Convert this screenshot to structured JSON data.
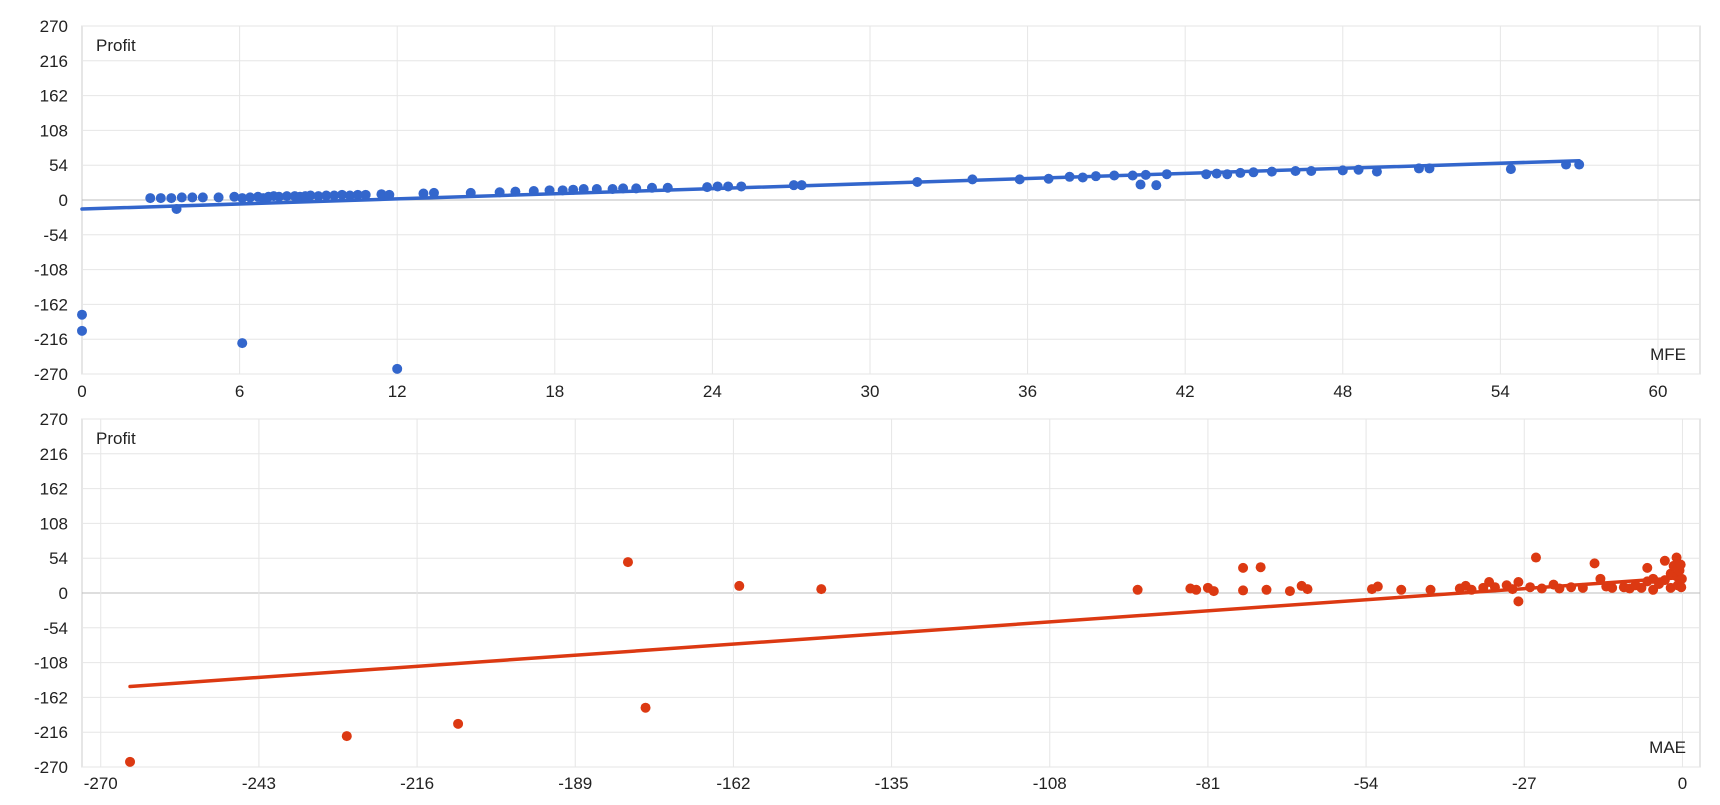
{
  "chart_data": [
    {
      "type": "scatter",
      "ylabel": "Profit",
      "xlabel": "MFE",
      "xlim": [
        0,
        60
      ],
      "ylim": [
        -270,
        270
      ],
      "x_ticks": [
        "0",
        "6",
        "12",
        "18",
        "24",
        "30",
        "36",
        "42",
        "48",
        "54",
        "60"
      ],
      "y_ticks": [
        "270",
        "216",
        "162",
        "108",
        "54",
        "0",
        "-54",
        "-108",
        "-162",
        "-216",
        "-270"
      ],
      "grid": true,
      "color": "#3366cc",
      "trendline": {
        "x": [
          0,
          57
        ],
        "y": [
          -14,
          61
        ]
      },
      "points": [
        [
          0,
          -178
        ],
        [
          0,
          -203
        ],
        [
          6.1,
          -222
        ],
        [
          12,
          -262
        ],
        [
          3.6,
          -14
        ],
        [
          2.6,
          3
        ],
        [
          3,
          3
        ],
        [
          3.4,
          3
        ],
        [
          3.8,
          4
        ],
        [
          4.2,
          4
        ],
        [
          4.6,
          4
        ],
        [
          5.2,
          4
        ],
        [
          5.8,
          5
        ],
        [
          6.1,
          3
        ],
        [
          6.4,
          4
        ],
        [
          6.7,
          5
        ],
        [
          6.9,
          3
        ],
        [
          7.1,
          5
        ],
        [
          7.3,
          6
        ],
        [
          7.5,
          5
        ],
        [
          7.8,
          6
        ],
        [
          8.1,
          6
        ],
        [
          8.3,
          5
        ],
        [
          8.5,
          6
        ],
        [
          8.7,
          7
        ],
        [
          9,
          6
        ],
        [
          9.3,
          7
        ],
        [
          9.6,
          7
        ],
        [
          9.9,
          8
        ],
        [
          10.2,
          7
        ],
        [
          10.5,
          8
        ],
        [
          10.8,
          8
        ],
        [
          11.4,
          9
        ],
        [
          11.7,
          8
        ],
        [
          13,
          10
        ],
        [
          13.4,
          11
        ],
        [
          14.8,
          11
        ],
        [
          15.9,
          12
        ],
        [
          16.5,
          13
        ],
        [
          17.2,
          14
        ],
        [
          17.8,
          15
        ],
        [
          18.3,
          15
        ],
        [
          18.7,
          16
        ],
        [
          19.1,
          17
        ],
        [
          19.6,
          17
        ],
        [
          20.2,
          17
        ],
        [
          20.6,
          18
        ],
        [
          21.1,
          18
        ],
        [
          21.7,
          19
        ],
        [
          22.3,
          19
        ],
        [
          23.8,
          20
        ],
        [
          24.2,
          21
        ],
        [
          24.6,
          21
        ],
        [
          25.1,
          21
        ],
        [
          27.1,
          23
        ],
        [
          27.4,
          23
        ],
        [
          31.8,
          28
        ],
        [
          33.9,
          32
        ],
        [
          35.7,
          32
        ],
        [
          36.8,
          33
        ],
        [
          37.6,
          36
        ],
        [
          38.1,
          35
        ],
        [
          38.6,
          37
        ],
        [
          39.3,
          38
        ],
        [
          40,
          38
        ],
        [
          40.3,
          24
        ],
        [
          40.5,
          39
        ],
        [
          40.9,
          23
        ],
        [
          41.3,
          40
        ],
        [
          42.8,
          40
        ],
        [
          43.2,
          41
        ],
        [
          43.6,
          40
        ],
        [
          44.1,
          42
        ],
        [
          44.6,
          43
        ],
        [
          45.3,
          44
        ],
        [
          46.2,
          45
        ],
        [
          46.8,
          45
        ],
        [
          48,
          46
        ],
        [
          48.6,
          47
        ],
        [
          49.3,
          44
        ],
        [
          50.9,
          49
        ],
        [
          51.3,
          49
        ],
        [
          54.4,
          48
        ],
        [
          56.5,
          55
        ],
        [
          57,
          55
        ]
      ]
    },
    {
      "type": "scatter",
      "ylabel": "Profit",
      "xlabel": "MAE",
      "xlim": [
        -272,
        0
      ],
      "ylim": [
        -270,
        270
      ],
      "x_ticks": [
        "-270",
        "-243",
        "-216",
        "-189",
        "-162",
        "-135",
        "-108",
        "-81",
        "-54",
        "-27",
        "0"
      ],
      "y_ticks": [
        "270",
        "216",
        "162",
        "108",
        "54",
        "0",
        "-54",
        "-108",
        "-162",
        "-216",
        "-270"
      ],
      "grid": true,
      "color": "#dc3912",
      "trendline": {
        "x": [
          -265,
          0
        ],
        "y": [
          -145,
          24
        ]
      },
      "points": [
        [
          -265,
          -262
        ],
        [
          -228,
          -222
        ],
        [
          -209,
          -203
        ],
        [
          -180,
          48
        ],
        [
          -177,
          -178
        ],
        [
          -161,
          11
        ],
        [
          -147,
          6
        ],
        [
          -93,
          5
        ],
        [
          -84,
          7
        ],
        [
          -83,
          5
        ],
        [
          -81,
          8
        ],
        [
          -80,
          3
        ],
        [
          -75,
          39
        ],
        [
          -75,
          4
        ],
        [
          -72,
          40
        ],
        [
          -71,
          5
        ],
        [
          -67,
          3
        ],
        [
          -65,
          11
        ],
        [
          -64,
          6
        ],
        [
          -53,
          6
        ],
        [
          -52,
          10
        ],
        [
          -48,
          5
        ],
        [
          -43,
          5
        ],
        [
          -38,
          7
        ],
        [
          -37,
          11
        ],
        [
          -36,
          5
        ],
        [
          -34,
          8
        ],
        [
          -33,
          17
        ],
        [
          -32,
          9
        ],
        [
          -30,
          12
        ],
        [
          -29,
          6
        ],
        [
          -28,
          17
        ],
        [
          -28,
          -13
        ],
        [
          -26,
          9
        ],
        [
          -25,
          55
        ],
        [
          -24,
          7
        ],
        [
          -22,
          13
        ],
        [
          -21,
          7
        ],
        [
          -19,
          9
        ],
        [
          -17,
          8
        ],
        [
          -15,
          46
        ],
        [
          -14,
          22
        ],
        [
          -13,
          10
        ],
        [
          -12,
          8
        ],
        [
          -10,
          9
        ],
        [
          -9,
          7
        ],
        [
          -8,
          12
        ],
        [
          -7,
          8
        ],
        [
          -6,
          18
        ],
        [
          -6,
          39
        ],
        [
          -5,
          22
        ],
        [
          -5,
          5
        ],
        [
          -4,
          14
        ],
        [
          -3,
          20
        ],
        [
          -3,
          50
        ],
        [
          -2,
          8
        ],
        [
          -2,
          30
        ],
        [
          -1.5,
          42
        ],
        [
          -1,
          55
        ],
        [
          -1,
          26
        ],
        [
          -0.8,
          12
        ],
        [
          -0.5,
          35
        ],
        [
          -0.3,
          44
        ],
        [
          -0.2,
          9
        ],
        [
          -0.1,
          22
        ]
      ]
    }
  ]
}
